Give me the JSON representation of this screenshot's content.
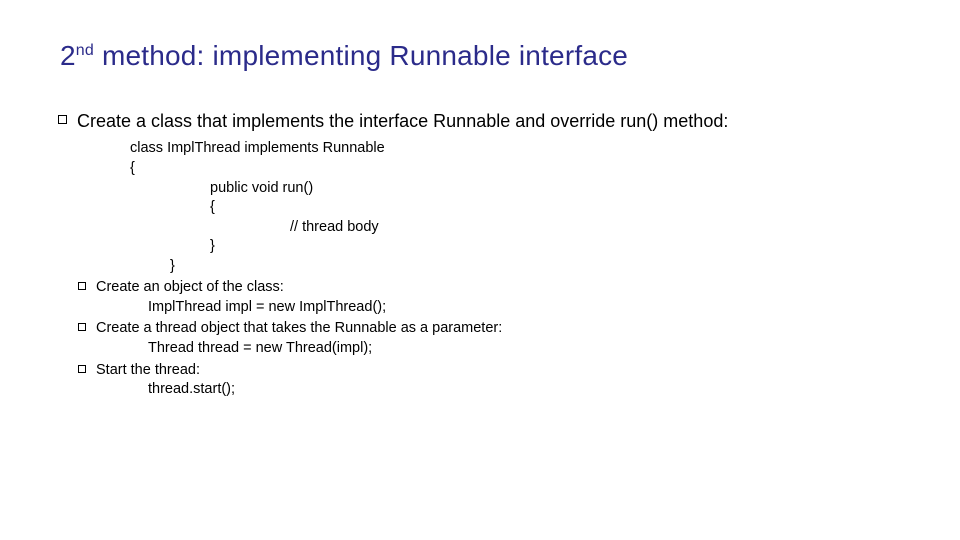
{
  "title_html": "2<sup>nd</sup> method: implementing Runnable interface",
  "bullets": {
    "b1": "Create a class that implements the interface Runnable and override run() method:",
    "code": {
      "l1": "class ImplThread implements Runnable",
      "l2": "{",
      "l3": "public void run()",
      "l4": "{",
      "l5": "// thread body",
      "l6": "}",
      "l7": "}"
    },
    "b2": "Create an object of the class:",
    "b2a": "ImplThread impl = new ImplThread();",
    "b3": "Create a thread object that takes the Runnable as a parameter:",
    "b3a": "Thread thread = new Thread(impl);",
    "b4": "Start the thread:",
    "b4a": "thread.start();"
  },
  "colors": {
    "title": "#2b2b8a",
    "text": "#000000",
    "background": "#ffffff"
  }
}
